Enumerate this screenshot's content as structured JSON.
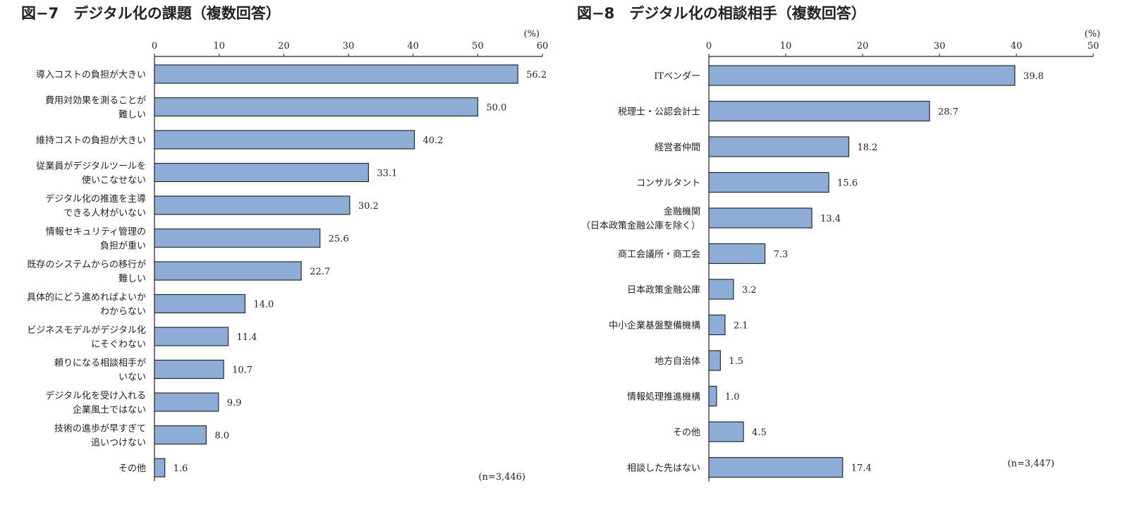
{
  "chart_data": [
    {
      "type": "bar",
      "orientation": "horizontal",
      "title": "図−7　デジタル化の課題（複数回答）",
      "unit": "(%)",
      "xlim": [
        0,
        60
      ],
      "ticks": [
        0,
        10,
        20,
        30,
        40,
        50,
        60
      ],
      "note": "(n=3,446)",
      "grid": false,
      "bar_color": "#8eadd6",
      "categories": [
        [
          "導入コストの負担が大きい"
        ],
        [
          "費用対効果を測ることが",
          "難しい"
        ],
        [
          "維持コストの負担が大きい"
        ],
        [
          "従業員がデジタルツールを",
          "使いこなせない"
        ],
        [
          "デジタル化の推進を主導",
          "できる人材がいない"
        ],
        [
          "情報セキュリティ管理の",
          "負担が重い"
        ],
        [
          "既存のシステムからの移行が",
          "難しい"
        ],
        [
          "具体的にどう進めればよいか",
          "わからない"
        ],
        [
          "ビジネスモデルがデジタル化",
          "にそぐわない"
        ],
        [
          "頼りになる相談相手が",
          "いない"
        ],
        [
          "デジタル化を受け入れる",
          "企業風土ではない"
        ],
        [
          "技術の進歩が早すぎて",
          "追いつけない"
        ],
        [
          "その他"
        ]
      ],
      "values": [
        56.2,
        50.0,
        40.2,
        33.1,
        30.2,
        25.6,
        22.7,
        14.0,
        11.4,
        10.7,
        9.9,
        8.0,
        1.6
      ]
    },
    {
      "type": "bar",
      "orientation": "horizontal",
      "title": "図−8　デジタル化の相談相手（複数回答）",
      "unit": "(%)",
      "xlim": [
        0,
        50
      ],
      "ticks": [
        0,
        10,
        20,
        30,
        40,
        50
      ],
      "note": "(n=3,447)",
      "grid": false,
      "bar_color": "#8eadd6",
      "categories": [
        [
          "ITベンダー"
        ],
        [
          "税理士・公認会計士"
        ],
        [
          "経営者仲間"
        ],
        [
          "コンサルタント"
        ],
        [
          "金融機関",
          "（日本政策金融公庫を除く）"
        ],
        [
          "商工会議所・商工会"
        ],
        [
          "日本政策金融公庫"
        ],
        [
          "中小企業基盤整備機構"
        ],
        [
          "地方自治体"
        ],
        [
          "情報処理推進機構"
        ],
        [
          "その他"
        ],
        [
          "相談した先はない"
        ]
      ],
      "values": [
        39.8,
        28.7,
        18.2,
        15.6,
        13.4,
        7.3,
        3.2,
        2.1,
        1.5,
        1.0,
        4.5,
        17.4
      ]
    }
  ]
}
